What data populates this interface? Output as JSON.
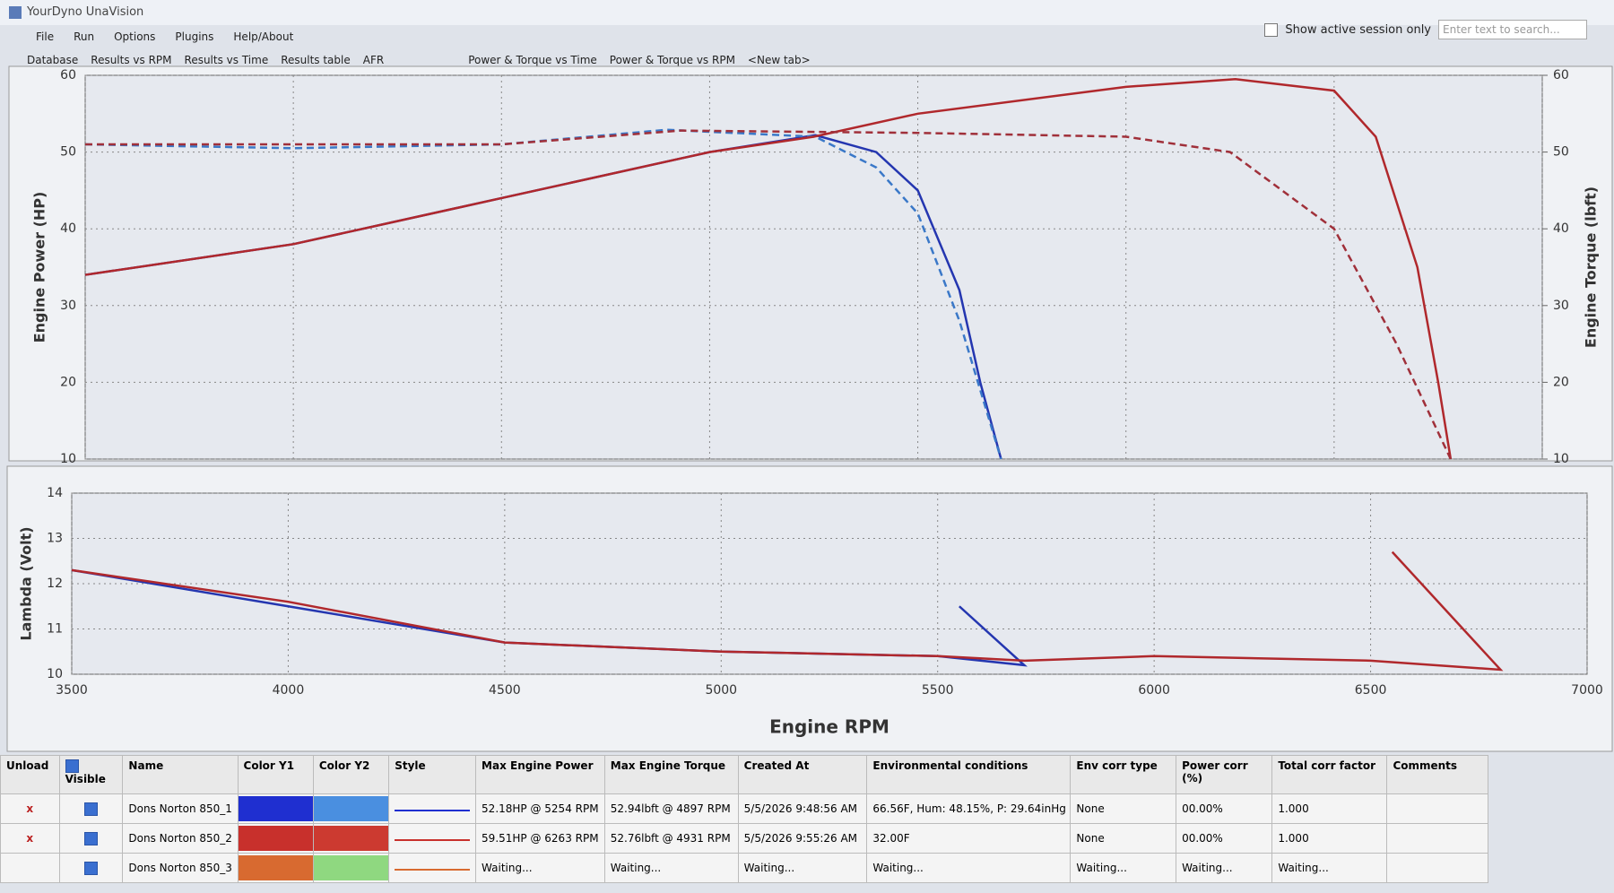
{
  "window_title": "YourDyno UnaVision",
  "menu": [
    "File",
    "Run",
    "Options",
    "Plugins",
    "Help/About"
  ],
  "tabs": [
    "Database",
    "Results vs RPM",
    "Results vs Time",
    "Results table",
    "AFR",
    "Power & Torque vs Time",
    "Power & Torque vs RPM",
    "<New tab>"
  ],
  "show_active_label": "Show active session only",
  "search_placeholder": "Enter text to search...",
  "chart_data": [
    {
      "type": "line",
      "x_label": "Engine RPM",
      "y_label": "Engine Power (HP)",
      "y2_label": "Engine Torque (lbft)",
      "xlim": [
        3500,
        7000
      ],
      "xticks": [
        3500,
        4000,
        4500,
        5000,
        5500,
        6000,
        6500,
        7000
      ],
      "ylim": [
        10,
        60
      ],
      "yticks": [
        10,
        20,
        30,
        40,
        50,
        60
      ],
      "y2lim": [
        10,
        60
      ],
      "y2ticks": [
        10,
        20,
        30,
        40,
        50,
        60
      ],
      "grid": true,
      "series": [
        {
          "color": "#2436b0",
          "dash": false,
          "x": [
            3500,
            4000,
            4500,
            5000,
            5254,
            5400,
            5500,
            5600,
            5650,
            5700
          ],
          "values": [
            34,
            38,
            44,
            50,
            52.2,
            50,
            45,
            32,
            20,
            10
          ]
        },
        {
          "color": "#3a78c8",
          "dash": true,
          "axis": "y2",
          "x": [
            3500,
            4000,
            4500,
            4897,
            5254,
            5400,
            5500,
            5600,
            5700
          ],
          "values": [
            51,
            50.5,
            51,
            52.9,
            52,
            48,
            42,
            28,
            10
          ]
        },
        {
          "color": "#b0282c",
          "dash": false,
          "x": [
            3500,
            4000,
            4500,
            5000,
            5250,
            5500,
            6000,
            6263,
            6500,
            6600,
            6700,
            6750,
            6780
          ],
          "values": [
            34,
            38,
            44,
            50,
            52,
            55,
            58.5,
            59.5,
            58,
            52,
            35,
            20,
            10
          ]
        },
        {
          "color": "#a0303a",
          "dash": true,
          "axis": "y2",
          "x": [
            3500,
            4000,
            4500,
            4931,
            5500,
            6000,
            6250,
            6500,
            6650,
            6780
          ],
          "values": [
            51,
            51,
            51,
            52.8,
            52.5,
            52,
            50,
            40,
            25,
            10
          ]
        }
      ]
    },
    {
      "type": "line",
      "x_label": "Engine RPM",
      "y_label": "Lambda (Volt)",
      "xlim": [
        3500,
        7000
      ],
      "xticks": [
        3500,
        4000,
        4500,
        5000,
        5500,
        6000,
        6500,
        7000
      ],
      "ylim": [
        10,
        14
      ],
      "yticks": [
        10,
        11,
        12,
        13,
        14
      ],
      "grid": true,
      "series": [
        {
          "color": "#2436b0",
          "dash": false,
          "x": [
            3500,
            4000,
            4500,
            5000,
            5500,
            5700,
            5550
          ],
          "values": [
            12.3,
            11.5,
            10.7,
            10.5,
            10.4,
            10.2,
            11.5
          ]
        },
        {
          "color": "#b0282c",
          "dash": false,
          "x": [
            3500,
            4000,
            4500,
            5000,
            5500,
            5700,
            6000,
            6500,
            6800,
            6550
          ],
          "values": [
            12.3,
            11.6,
            10.7,
            10.5,
            10.4,
            10.3,
            10.4,
            10.3,
            10.1,
            12.7
          ]
        }
      ]
    }
  ],
  "table": {
    "headers": [
      "Unload",
      "Visible",
      "Name",
      "Color Y1",
      "Color Y2",
      "Style",
      "Max Engine Power",
      "Max Engine Torque",
      "Created At",
      "Environmental conditions",
      "Env corr type",
      "Power corr (%)",
      "Total corr factor",
      "Comments"
    ],
    "rows": [
      {
        "unload": "x",
        "visible": true,
        "name": "Dons Norton 850_1",
        "color_y1": "#1f2fd0",
        "color_y2": "#4a8fe0",
        "cells": [
          "52.18HP @ 5254 RPM",
          "52.94lbft @ 4897 RPM",
          "5/5/2026 9:48:56 AM",
          "66.56F, Hum: 48.15%, P: 29.64inHg",
          "None",
          "00.00%",
          "1.000"
        ]
      },
      {
        "unload": "x",
        "visible": true,
        "name": "Dons Norton 850_2",
        "color_y1": "#c8302c",
        "color_y2": "#cc3a30",
        "cells": [
          "59.51HP @ 6263 RPM",
          "52.76lbft @ 4931 RPM",
          "5/5/2026 9:55:26 AM",
          "32.00F",
          "None",
          "00.00%",
          "1.000"
        ]
      },
      {
        "visible": true,
        "name": "Dons Norton 850_3",
        "color_y1": "#d86a30",
        "color_y2": "#8fd880",
        "cells": [
          "Waiting...",
          "Waiting...",
          "Waiting...",
          "Waiting...",
          "Waiting...",
          "Waiting...",
          "Waiting..."
        ]
      }
    ]
  }
}
